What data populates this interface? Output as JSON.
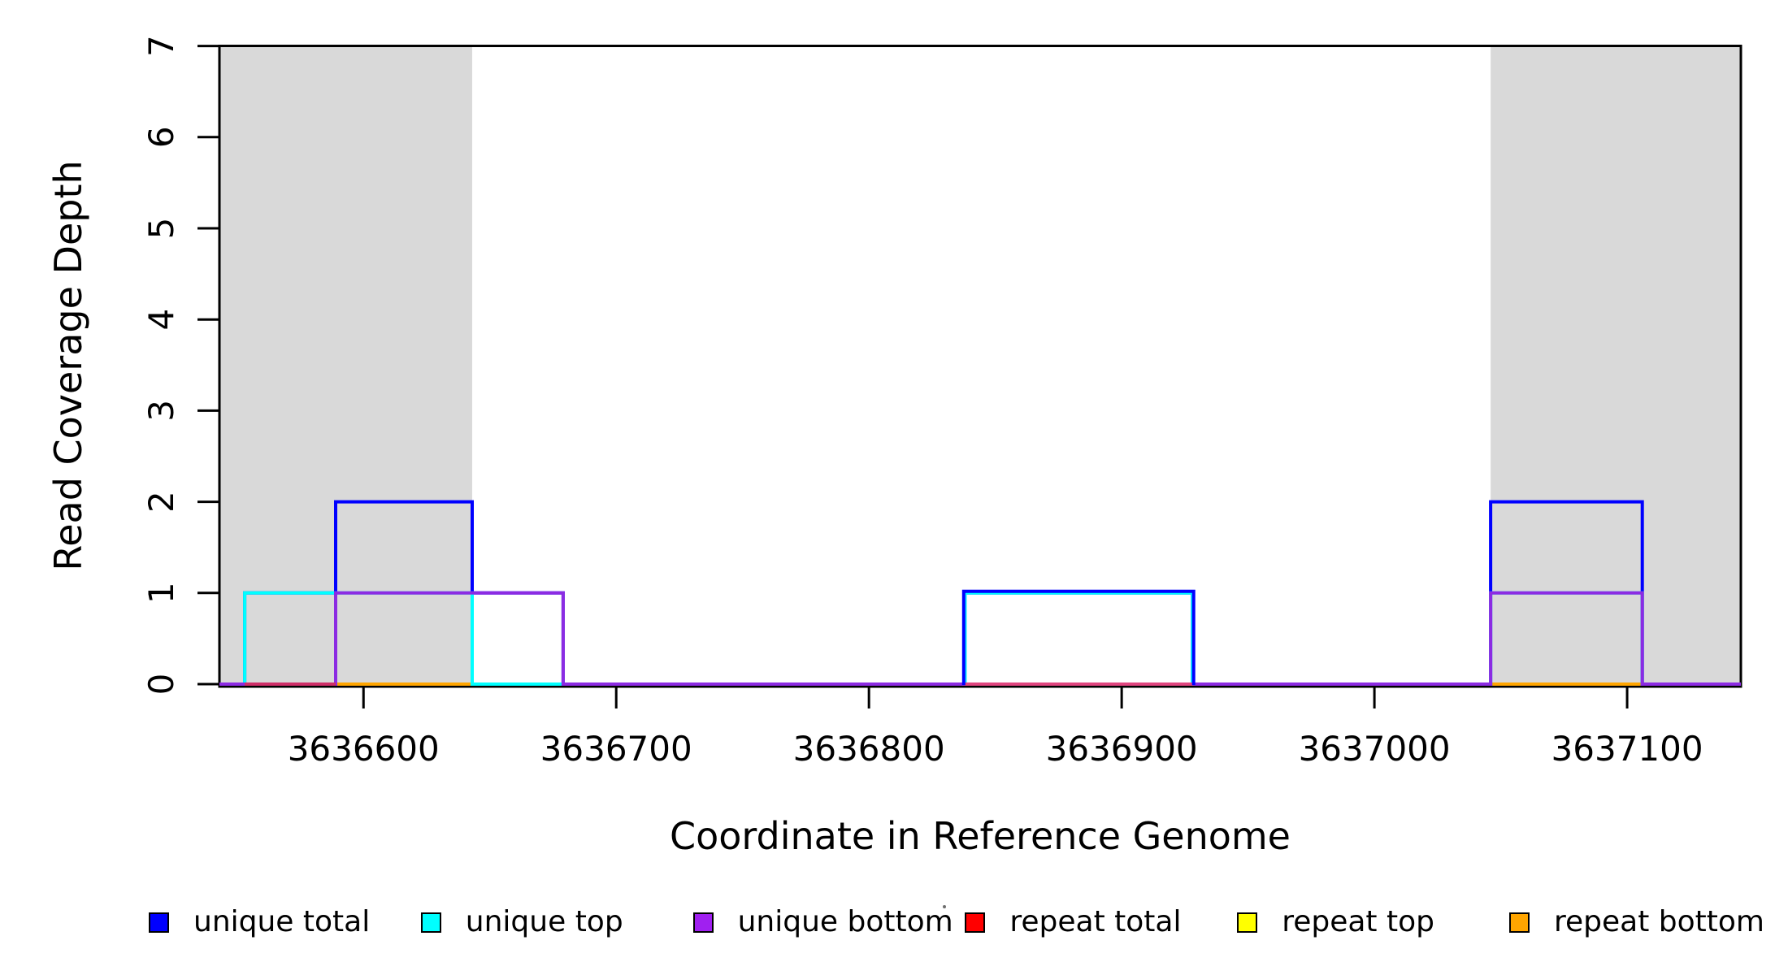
{
  "chart_data": {
    "type": "line",
    "subtype": "step-coverage-plot",
    "title": "",
    "xlabel": "Coordinate in Reference Genome",
    "ylabel": "Read Coverage Depth",
    "xlim": [
      3636543,
      3637145
    ],
    "ylim": [
      0,
      7
    ],
    "grid": false,
    "x_ticks": [
      3636600,
      3636700,
      3636800,
      3636900,
      3637000,
      3637100
    ],
    "x_tick_labels": [
      "3636600",
      "3636700",
      "3636800",
      "3636900",
      "3637000",
      "3637100"
    ],
    "y_ticks": [
      0,
      1,
      2,
      3,
      4,
      5,
      6,
      7
    ],
    "y_tick_labels": [
      "0",
      "1",
      "2",
      "3",
      "4",
      "5",
      "6",
      "7"
    ],
    "shade_color": "#d9d9d9",
    "shaded_regions": [
      {
        "from": 3636543,
        "to": 3636643
      },
      {
        "from": 3637046,
        "to": 3637145
      }
    ],
    "series": [
      {
        "name": "repeat total",
        "color": "#ff0000",
        "segments": []
      },
      {
        "name": "repeat top",
        "color": "#ffff00",
        "segments": []
      },
      {
        "name": "repeat bottom",
        "color": "#ffa500",
        "segments": []
      },
      {
        "name": "unique total",
        "color": "#0000ff",
        "segments": [
          {
            "from": 3636553,
            "to": 3636589,
            "value": 1
          },
          {
            "from": 3636589,
            "to": 3636643,
            "value": 2
          },
          {
            "from": 3636643,
            "to": 3636679,
            "value": 1
          },
          {
            "from": 3636838,
            "to": 3636928,
            "value": 1
          },
          {
            "from": 3637046,
            "to": 3637106,
            "value": 2
          }
        ]
      },
      {
        "name": "unique top",
        "color": "#00ffff",
        "segments": [
          {
            "from": 3636553,
            "to": 3636643,
            "value": 1
          },
          {
            "from": 3636838,
            "to": 3636928,
            "value": 1
          },
          {
            "from": 3637046,
            "to": 3637106,
            "value": 1
          }
        ]
      },
      {
        "name": "unique bottom",
        "color": "#8c2be2",
        "segments": [
          {
            "from": 3636589,
            "to": 3636679,
            "value": 1
          },
          {
            "from": 3637046,
            "to": 3637106,
            "value": 1
          }
        ]
      }
    ],
    "baseline_overlays": [
      {
        "from": 3636553,
        "to": 3636589,
        "color": "#cf2e68"
      },
      {
        "from": 3636838,
        "to": 3636928,
        "color": "#e0457f"
      }
    ],
    "highlight_redraw": {
      "series": "unique total",
      "from": 3636838,
      "to": 3636928,
      "value": 1,
      "color": "#0000ff"
    },
    "legend_position": "bottom"
  },
  "legend": {
    "items": [
      {
        "label": "unique total",
        "color": "#0000ff"
      },
      {
        "label": "unique top",
        "color": "#00ffff"
      },
      {
        "label": "unique bottom",
        "color": "#a020f0"
      },
      {
        "label": "repeat total",
        "color": "#ff0000"
      },
      {
        "label": "repeat top",
        "color": "#ffff00"
      },
      {
        "label": "repeat bottom",
        "color": "#ffa500"
      }
    ]
  },
  "axis": {
    "x_title": "Coordinate in Reference Genome",
    "y_title": "Read Coverage Depth"
  }
}
